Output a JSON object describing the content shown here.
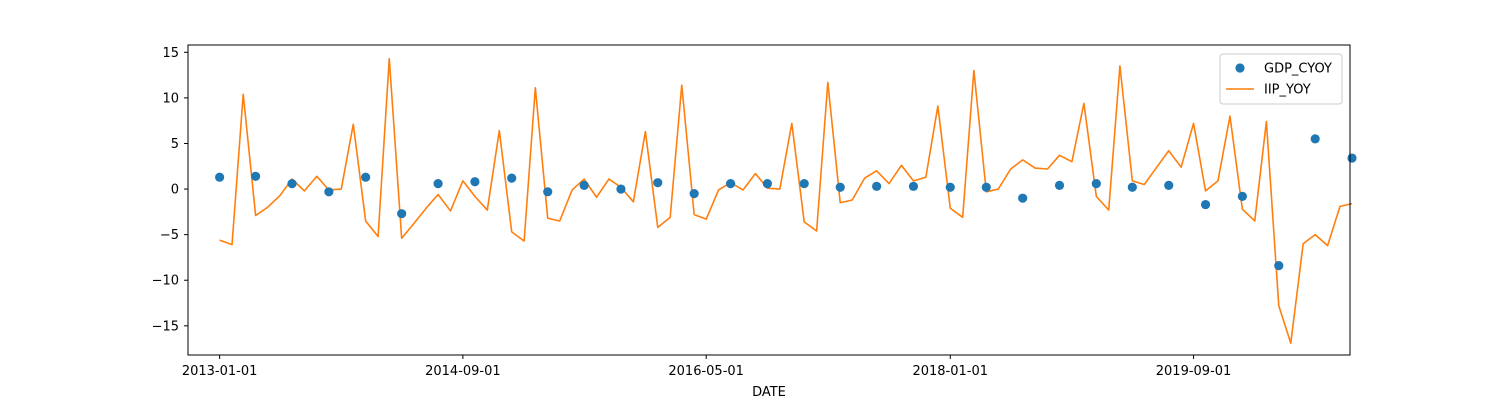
{
  "chart_data": {
    "type": "line",
    "title": "",
    "xlabel": "DATE",
    "ylabel": "",
    "x_tick_labels": [
      "2013-01-01",
      "2014-09-01",
      "2016-05-01",
      "2018-01-01",
      "2019-09-01"
    ],
    "y_ticks": [
      -15,
      -10,
      -5,
      0,
      5,
      10,
      15
    ],
    "y_tick_labels": [
      "−15",
      "−10",
      "−5",
      "0",
      "5",
      "10",
      "15"
    ],
    "ylim": [
      -18.2,
      15.8
    ],
    "xlim": [
      "2012-10-14",
      "2020-09-26"
    ],
    "legend_position": "top-right",
    "grid": false,
    "series": [
      {
        "name": "GDP_CYOY",
        "kind": "scatter",
        "color": "#1f77b4",
        "x": [
          "2013-01-01",
          "2013-04-01",
          "2013-07-01",
          "2013-10-01",
          "2014-01-01",
          "2014-04-01",
          "2014-07-01",
          "2014-10-01",
          "2015-01-01",
          "2015-04-01",
          "2015-07-01",
          "2015-10-01",
          "2016-01-01",
          "2016-04-01",
          "2016-07-01",
          "2016-10-01",
          "2017-01-01",
          "2017-04-01",
          "2017-07-01",
          "2017-10-01",
          "2018-01-01",
          "2018-04-01",
          "2018-07-01",
          "2018-10-01",
          "2019-01-01",
          "2019-04-01",
          "2019-07-01",
          "2019-10-01",
          "2020-01-01",
          "2020-04-01",
          "2020-07-01",
          "2020-10-01"
        ],
        "y": [
          1.3,
          1.4,
          0.6,
          -0.3,
          1.3,
          -2.7,
          0.6,
          0.8,
          1.2,
          -0.3,
          0.4,
          0.0,
          0.7,
          -0.5,
          0.6,
          0.6,
          0.6,
          0.2,
          0.3,
          0.3,
          0.2,
          0.2,
          -1.0,
          0.4,
          0.6,
          0.2,
          0.4,
          -1.7,
          -0.8,
          -8.4,
          5.5,
          3.4
        ]
      },
      {
        "name": "IIP_YOY",
        "kind": "line",
        "color": "#ff7f0e",
        "x": [
          "2013-01-01",
          "2013-02-01",
          "2013-03-01",
          "2013-04-01",
          "2013-05-01",
          "2013-06-01",
          "2013-07-01",
          "2013-08-01",
          "2013-09-01",
          "2013-10-01",
          "2013-11-01",
          "2013-12-01",
          "2014-01-01",
          "2014-02-01",
          "2014-03-01",
          "2014-04-01",
          "2014-05-01",
          "2014-06-01",
          "2014-07-01",
          "2014-08-01",
          "2014-09-01",
          "2014-10-01",
          "2014-11-01",
          "2014-12-01",
          "2015-01-01",
          "2015-02-01",
          "2015-03-01",
          "2015-04-01",
          "2015-05-01",
          "2015-06-01",
          "2015-07-01",
          "2015-08-01",
          "2015-09-01",
          "2015-10-01",
          "2015-11-01",
          "2015-12-01",
          "2016-01-01",
          "2016-02-01",
          "2016-03-01",
          "2016-04-01",
          "2016-05-01",
          "2016-06-01",
          "2016-07-01",
          "2016-08-01",
          "2016-09-01",
          "2016-10-01",
          "2016-11-01",
          "2016-12-01",
          "2017-01-01",
          "2017-02-01",
          "2017-03-01",
          "2017-04-01",
          "2017-05-01",
          "2017-06-01",
          "2017-07-01",
          "2017-08-01",
          "2017-09-01",
          "2017-10-01",
          "2017-11-01",
          "2017-12-01",
          "2018-01-01",
          "2018-02-01",
          "2018-03-01",
          "2018-04-01",
          "2018-05-01",
          "2018-06-01",
          "2018-07-01",
          "2018-08-01",
          "2018-09-01",
          "2018-10-01",
          "2018-11-01",
          "2018-12-01",
          "2019-01-01",
          "2019-02-01",
          "2019-03-01",
          "2019-04-01",
          "2019-05-01",
          "2019-06-01",
          "2019-07-01",
          "2019-08-01",
          "2019-09-01",
          "2019-10-01",
          "2019-11-01",
          "2019-12-01",
          "2020-01-01",
          "2020-02-01",
          "2020-03-01",
          "2020-04-01",
          "2020-05-01",
          "2020-06-01",
          "2020-07-01",
          "2020-08-01",
          "2020-09-01",
          "2020-10-01"
        ],
        "y": [
          -5.6,
          -6.1,
          10.4,
          -2.9,
          -2.0,
          -0.7,
          1.1,
          -0.2,
          1.4,
          -0.1,
          0.0,
          7.1,
          -3.5,
          -5.2,
          14.3,
          -5.4,
          -3.8,
          -2.1,
          -0.6,
          -2.4,
          0.9,
          -0.8,
          -2.3,
          6.4,
          -4.7,
          -5.7,
          11.1,
          -3.2,
          -3.5,
          -0.1,
          1.1,
          -0.9,
          1.1,
          0.2,
          -1.4,
          6.3,
          -4.2,
          -3.1,
          11.4,
          -2.8,
          -3.3,
          -0.1,
          0.7,
          -0.1,
          1.7,
          0.1,
          0.0,
          7.2,
          -3.6,
          -4.6,
          11.7,
          -1.5,
          -1.2,
          1.2,
          2.0,
          0.6,
          2.6,
          0.9,
          1.3,
          9.1,
          -2.1,
          -3.1,
          13.0,
          -0.3,
          0.0,
          2.2,
          3.2,
          2.3,
          2.2,
          3.7,
          3.0,
          9.4,
          -0.8,
          -2.3,
          13.5,
          0.9,
          0.5,
          2.4,
          4.2,
          2.4,
          7.2,
          -0.2,
          0.9,
          8.0,
          -2.2,
          -3.5,
          7.4,
          -12.8,
          -16.9,
          -6.0,
          -5.0,
          -6.2,
          -1.9,
          -1.6
        ]
      }
    ]
  }
}
